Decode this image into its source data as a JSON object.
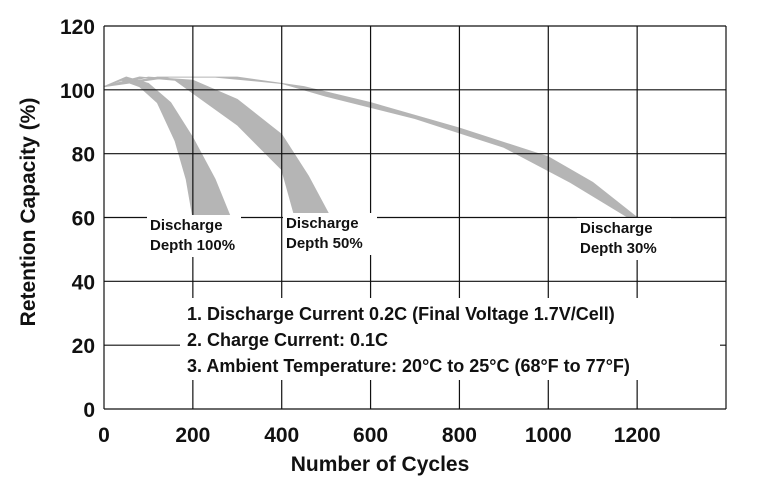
{
  "chart_data": {
    "type": "area",
    "title": "",
    "xlabel": "Number of Cycles",
    "ylabel": "Retention Capacity (%)",
    "xlim": [
      0,
      1400
    ],
    "ylim": [
      0,
      120
    ],
    "xticks": [
      "0",
      "200",
      "400",
      "600",
      "800",
      "1000",
      "1200"
    ],
    "yticks": [
      "0",
      "20",
      "40",
      "60",
      "80",
      "100",
      "120"
    ],
    "grid": true,
    "series": [
      {
        "name": "Discharge Depth 100%",
        "label_lines": [
          "Discharge",
          "Depth 100%"
        ],
        "color": "#b5b5b5",
        "upper": [
          [
            0,
            101
          ],
          [
            50,
            104
          ],
          [
            100,
            102
          ],
          [
            150,
            96
          ],
          [
            200,
            85
          ],
          [
            250,
            72
          ],
          [
            285,
            60
          ]
        ],
        "lower": [
          [
            0,
            101
          ],
          [
            40,
            103
          ],
          [
            80,
            101
          ],
          [
            120,
            96
          ],
          [
            160,
            84
          ],
          [
            185,
            72
          ],
          [
            200,
            60
          ]
        ]
      },
      {
        "name": "Discharge Depth 50%",
        "label_lines": [
          "Discharge",
          "Depth 50%"
        ],
        "color": "#b5b5b5",
        "upper": [
          [
            0,
            101
          ],
          [
            100,
            104
          ],
          [
            200,
            103
          ],
          [
            300,
            97
          ],
          [
            400,
            86
          ],
          [
            460,
            73
          ],
          [
            510,
            60
          ]
        ],
        "lower": [
          [
            0,
            101
          ],
          [
            80,
            104
          ],
          [
            160,
            103
          ],
          [
            220,
            97
          ],
          [
            300,
            89
          ],
          [
            400,
            75
          ],
          [
            430,
            60
          ]
        ]
      },
      {
        "name": "Discharge Depth 30%",
        "label_lines": [
          "Discharge",
          "Depth 30%"
        ],
        "color": "#b5b5b5",
        "upper": [
          [
            0,
            101
          ],
          [
            150,
            104
          ],
          [
            300,
            104
          ],
          [
            450,
            101
          ],
          [
            600,
            96
          ],
          [
            800,
            88
          ],
          [
            1000,
            79
          ],
          [
            1100,
            71
          ],
          [
            1200,
            60
          ]
        ],
        "lower": [
          [
            0,
            101
          ],
          [
            120,
            104
          ],
          [
            250,
            104
          ],
          [
            400,
            102
          ],
          [
            500,
            98
          ],
          [
            700,
            91
          ],
          [
            900,
            82
          ],
          [
            1050,
            71
          ],
          [
            1180,
            60
          ]
        ]
      }
    ],
    "notes": [
      "1. Discharge Current 0.2C (Final Voltage 1.7V/Cell)",
      "2. Charge Current: 0.1C",
      "3. Ambient Temperature: 20°C to 25°C (68°F to 77°F)"
    ]
  }
}
